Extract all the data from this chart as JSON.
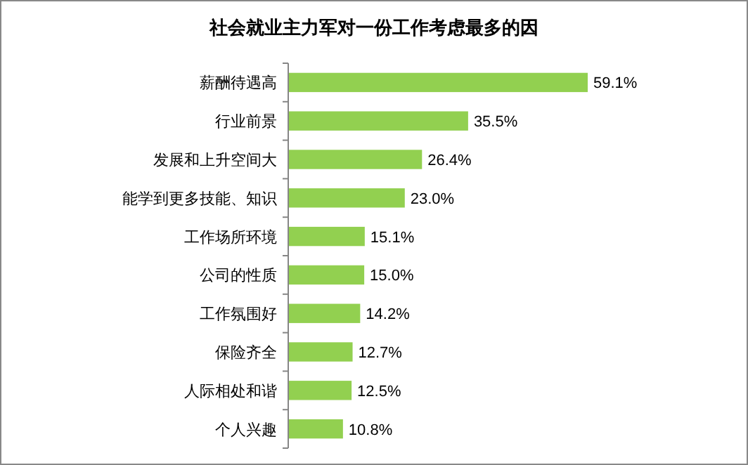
{
  "chart_data": {
    "type": "bar",
    "orientation": "horizontal",
    "title": "社会就业主力军对一份工作考虑最多的因",
    "categories": [
      "薪酬待遇高",
      "行业前景",
      "发展和上升空间大",
      "能学到更多技能、知识",
      "工作场所环境",
      "公司的性质",
      "工作氛围好",
      "保险齐全",
      "人际相处和谐",
      "个人兴趣"
    ],
    "values": [
      59.1,
      35.5,
      26.4,
      23.0,
      15.1,
      15.0,
      14.2,
      12.7,
      12.5,
      10.8
    ],
    "value_labels": [
      "59.1%",
      "35.5%",
      "26.4%",
      "23.0%",
      "15.1%",
      "15.0%",
      "14.2%",
      "12.7%",
      "12.5%",
      "10.8%"
    ],
    "color": "#92d050"
  }
}
